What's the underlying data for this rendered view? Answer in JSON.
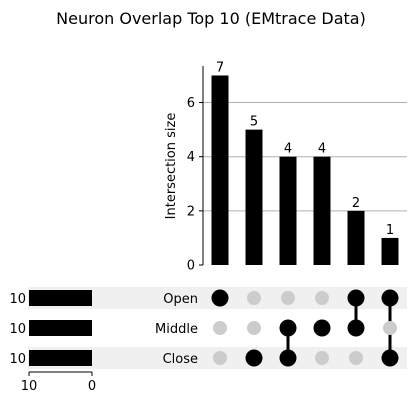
{
  "chart_data": {
    "type": "upset",
    "title": "Neuron Overlap Top 10 (EMtrace Data)",
    "ylabel": "Intersection size",
    "ylim": [
      0,
      7.35
    ],
    "yticks": [
      0,
      2,
      4,
      6
    ],
    "grid": true,
    "sets": [
      {
        "name": "Open",
        "size": 10,
        "size_label": "10"
      },
      {
        "name": "Middle",
        "size": 10,
        "size_label": "10"
      },
      {
        "name": "Close",
        "size": 10,
        "size_label": "10"
      }
    ],
    "set_size_xlim": [
      10,
      0
    ],
    "set_size_ticks": [
      {
        "value": 10,
        "label": "10"
      },
      {
        "value": 0,
        "label": "0"
      }
    ],
    "intersections": [
      {
        "members": [
          "Open"
        ],
        "value": 7,
        "label": "7"
      },
      {
        "members": [
          "Close"
        ],
        "value": 5,
        "label": "5"
      },
      {
        "members": [
          "Middle",
          "Close"
        ],
        "value": 4,
        "label": "4"
      },
      {
        "members": [
          "Middle"
        ],
        "value": 4,
        "label": "4"
      },
      {
        "members": [
          "Open",
          "Middle"
        ],
        "value": 2,
        "label": "2"
      },
      {
        "members": [
          "Open",
          "Close"
        ],
        "value": 1,
        "label": "1"
      }
    ],
    "colors": {
      "bar": "#000000",
      "active_dot": "#000000",
      "inactive_dot": "#cccccc",
      "grid": "#b0b0b0",
      "stripe": "#f0f0f0"
    }
  }
}
